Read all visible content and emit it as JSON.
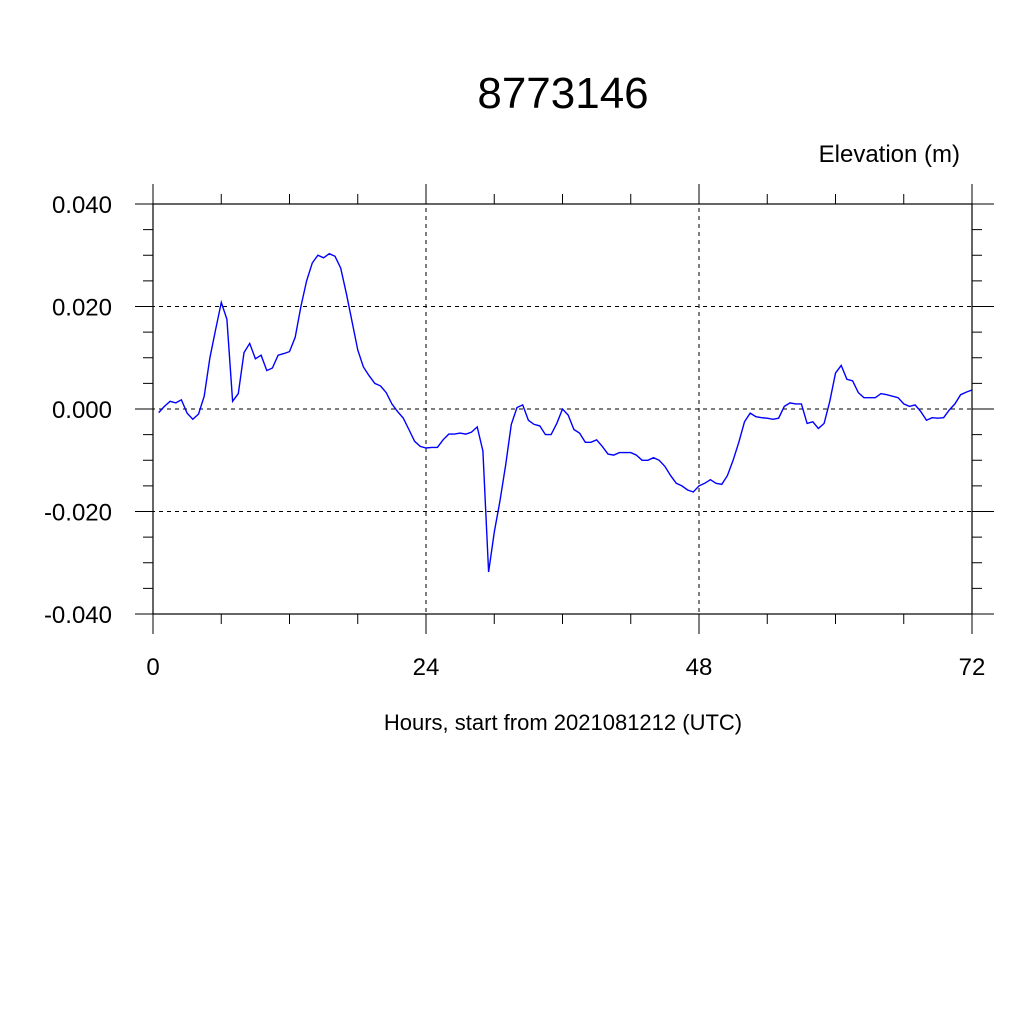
{
  "chart_data": {
    "type": "line",
    "title": "8773146",
    "ylabel": "Elevation (m)",
    "xlabel": "Hours, start from 2021081212 (UTC)",
    "xlim": [
      0,
      72
    ],
    "ylim": [
      -0.04,
      0.04
    ],
    "x_ticks": [
      0,
      24,
      48,
      72
    ],
    "x_tick_labels": [
      "0",
      "24",
      "48",
      "72"
    ],
    "y_ticks": [
      -0.04,
      -0.02,
      0.0,
      0.02,
      0.04
    ],
    "y_tick_labels": [
      "-0.040",
      "-0.020",
      "0.000",
      "0.020",
      "0.040"
    ],
    "x_minor_step": 6,
    "y_minor_step": 0.005,
    "grid": true,
    "series": [
      {
        "color": "#0000ff",
        "x": [
          0.5,
          1.0,
          1.5,
          2.0,
          2.5,
          3.0,
          3.5,
          4.0,
          4.5,
          5.0,
          5.5,
          6.0,
          6.5,
          7.0,
          7.5,
          8.0,
          8.5,
          9.0,
          9.5,
          10.0,
          10.5,
          11.0,
          11.5,
          12.0,
          12.5,
          13.0,
          13.5,
          14.0,
          14.5,
          15.0,
          15.5,
          16.0,
          16.5,
          17.0,
          17.5,
          18.0,
          18.5,
          19.0,
          19.5,
          20.0,
          20.5,
          21.0,
          21.5,
          22.0,
          22.5,
          23.0,
          23.5,
          24.0,
          24.5,
          25.0,
          25.5,
          26.0,
          26.5,
          27.0,
          27.5,
          28.0,
          28.5,
          29.0,
          29.5,
          30.0,
          30.5,
          31.0,
          31.5,
          32.0,
          32.5,
          33.0,
          33.5,
          34.0,
          34.5,
          35.0,
          35.5,
          36.0,
          36.5,
          37.0,
          37.5,
          38.0,
          38.5,
          39.0,
          39.5,
          40.0,
          40.5,
          41.0,
          41.5,
          42.0,
          42.5,
          43.0,
          43.5,
          44.0,
          44.5,
          45.0,
          45.5,
          46.0,
          46.5,
          47.0,
          47.5,
          48.0,
          48.5,
          49.0,
          49.5,
          50.0,
          50.5,
          51.0,
          51.5,
          52.0,
          52.5,
          53.0,
          53.5,
          54.0,
          54.5,
          55.0,
          55.5,
          56.0,
          56.5,
          57.0,
          57.5,
          58.0,
          58.5,
          59.0,
          59.5,
          60.0,
          60.5,
          61.0,
          61.5,
          62.0,
          62.5,
          63.0,
          63.5,
          64.0,
          64.5,
          65.0,
          65.5,
          66.0,
          66.5,
          67.0,
          67.5,
          68.0,
          68.5,
          69.0,
          69.5,
          70.0,
          70.5,
          71.0,
          71.5,
          72.0
        ],
        "values": [
          -0.0007,
          0.0005,
          0.0015,
          0.0012,
          0.0018,
          -0.0008,
          -0.002,
          -0.001,
          0.0025,
          0.01,
          0.0155,
          0.0208,
          0.0175,
          0.0015,
          0.003,
          0.011,
          0.0128,
          0.0098,
          0.0105,
          0.0075,
          0.008,
          0.0105,
          0.0108,
          0.0112,
          0.014,
          0.02,
          0.025,
          0.0285,
          0.03,
          0.0295,
          0.0303,
          0.0298,
          0.0275,
          0.0225,
          0.017,
          0.0115,
          0.0082,
          0.0065,
          0.005,
          0.0045,
          0.0032,
          0.001,
          -0.0005,
          -0.0018,
          -0.004,
          -0.0063,
          -0.0073,
          -0.0076,
          -0.0075,
          -0.0075,
          -0.006,
          -0.0049,
          -0.0049,
          -0.0047,
          -0.0049,
          -0.0045,
          -0.0035,
          -0.0082,
          -0.0318,
          -0.024,
          -0.018,
          -0.011,
          -0.003,
          0.0003,
          0.0008,
          -0.0022,
          -0.003,
          -0.0033,
          -0.005,
          -0.005,
          -0.0028,
          0.0,
          -0.0012,
          -0.004,
          -0.0047,
          -0.0065,
          -0.0065,
          -0.006,
          -0.0073,
          -0.0088,
          -0.009,
          -0.0085,
          -0.0085,
          -0.0085,
          -0.009,
          -0.01,
          -0.01,
          -0.0095,
          -0.01,
          -0.0112,
          -0.013,
          -0.0145,
          -0.015,
          -0.0158,
          -0.0162,
          -0.015,
          -0.0145,
          -0.0138,
          -0.0145,
          -0.0147,
          -0.013,
          -0.01,
          -0.0065,
          -0.0025,
          -0.0008,
          -0.0015,
          -0.0017,
          -0.0018,
          -0.002,
          -0.0018,
          0.0005,
          0.0012,
          0.001,
          0.001,
          -0.0028,
          -0.0025,
          -0.0038,
          -0.0028,
          0.0015,
          0.007,
          0.0085,
          0.0058,
          0.0055,
          0.0032,
          0.0022,
          0.0022,
          0.0022,
          0.003,
          0.0028,
          0.0025,
          0.0022,
          0.001,
          0.0005,
          0.0008,
          -0.0005,
          -0.0022,
          -0.0017,
          -0.0018,
          -0.0017,
          -0.0002,
          0.001,
          0.0028,
          0.0033,
          0.0037
        ]
      }
    ]
  }
}
